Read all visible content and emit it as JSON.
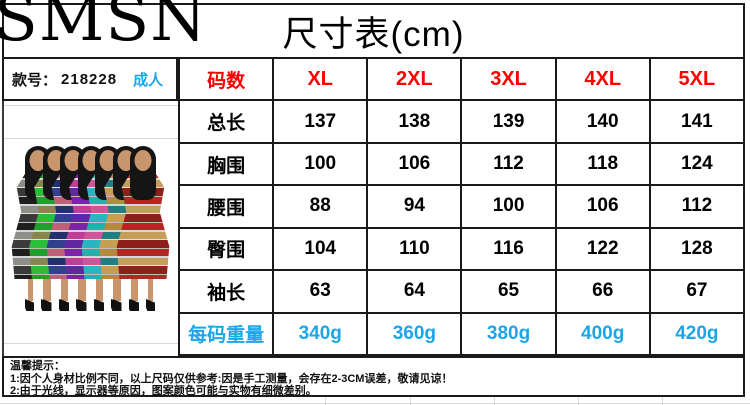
{
  "brand": {
    "logo": "SMSN"
  },
  "title": "尺寸表(cm)",
  "product": {
    "style_label": "款号：",
    "style_number": "218228",
    "audience": "成人"
  },
  "size_table": {
    "columns": [
      "码数",
      "XL",
      "2XL",
      "3XL",
      "4XL",
      "5XL"
    ],
    "rows": [
      {
        "label": "总长",
        "values": [
          "137",
          "138",
          "139",
          "140",
          "141"
        ]
      },
      {
        "label": "胸围",
        "values": [
          "100",
          "106",
          "112",
          "118",
          "124"
        ]
      },
      {
        "label": "腰围",
        "values": [
          "88",
          "94",
          "100",
          "106",
          "112"
        ]
      },
      {
        "label": "臀围",
        "values": [
          "104",
          "110",
          "116",
          "122",
          "128"
        ]
      },
      {
        "label": "袖长",
        "values": [
          "63",
          "64",
          "65",
          "66",
          "67"
        ]
      },
      {
        "label": "每码重量",
        "values": [
          "340g",
          "360g",
          "380g",
          "400g",
          "420g"
        ]
      }
    ]
  },
  "tips": {
    "title": "温馨提示：",
    "lines": [
      "1:因个人身材比例不同，以上尺码仅供参考:因是手工测量，会存在2-3CM误差，敬请见谅！",
      "2:由于光线，显示器等原因，图案颜色可能与实物有细微差别。"
    ]
  },
  "colors": {
    "border": "#1a1a1a",
    "accent_red": "#ff0000",
    "accent_blue": "#1ca6ea",
    "skin": "#c9956d",
    "hair": "#151515"
  },
  "models": {
    "colorways": [
      {
        "name": "black-silver",
        "stripes": [
          "#1e1e1e",
          "#8f8f89",
          "#3a3a3a"
        ]
      },
      {
        "name": "green-olive",
        "stripes": [
          "#1fa02c",
          "#86864e",
          "#2bbf38"
        ]
      },
      {
        "name": "rose-navy",
        "stripes": [
          "#c05f78",
          "#22306e",
          "#31418f"
        ]
      },
      {
        "name": "purple-magenta",
        "stripes": [
          "#7e22a8",
          "#bf3f98",
          "#5f28a0"
        ]
      },
      {
        "name": "teal-pink",
        "stripes": [
          "#25b0ab",
          "#d0549a",
          "#28b7c2"
        ]
      },
      {
        "name": "gold-teal",
        "stripes": [
          "#b5893f",
          "#1f7f80",
          "#c79f52"
        ]
      },
      {
        "name": "red-gold",
        "stripes": [
          "#b22722",
          "#c59f5a",
          "#8e1f1a"
        ]
      }
    ]
  }
}
